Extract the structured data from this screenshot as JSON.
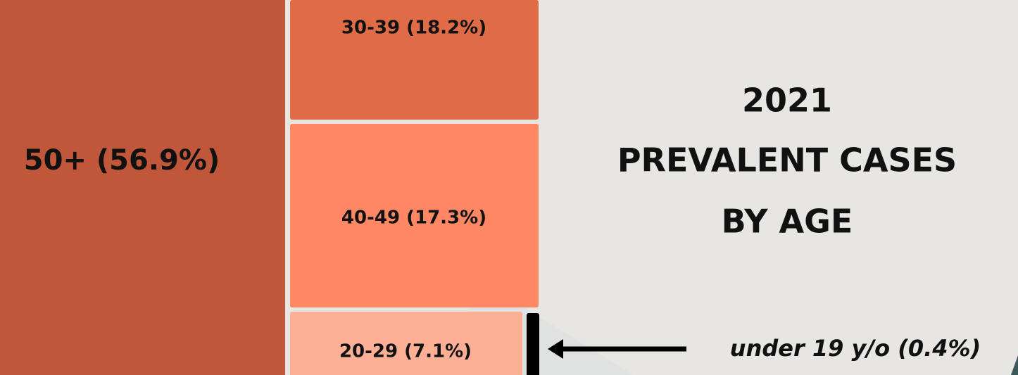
{
  "chart_data": {
    "type": "treemap",
    "title": [
      "2021",
      "PREVALENT CASES",
      "BY AGE"
    ],
    "labels": [
      "50+ (56.9%)",
      "30-39 (18.2%)",
      "40-49 (17.3%)",
      "20-29 (7.1%)",
      "under 19 y/o (0.4%)"
    ],
    "values": [
      56.9,
      18.2,
      17.3,
      7.1,
      0.4
    ],
    "colors": [
      "#c1573a",
      "#e06c47",
      "#fd8863",
      "#fdb096",
      "#000000"
    ]
  }
}
